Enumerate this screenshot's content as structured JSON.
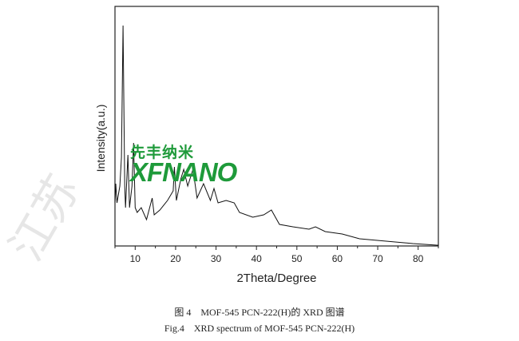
{
  "chart_data": {
    "type": "line",
    "title": "",
    "xlabel": "2Theta/Degree",
    "ylabel": "Intensity(a.u.)",
    "xlim": [
      5,
      85
    ],
    "ylim": [
      0,
      100
    ],
    "xticks": [
      10,
      20,
      30,
      40,
      50,
      60,
      70,
      80
    ],
    "grid": false,
    "series": [
      {
        "name": "MOF-545 PCN-222(H)",
        "color": "#111111",
        "x": [
          5.0,
          5.2,
          5.5,
          6.2,
          6.6,
          7.0,
          7.4,
          7.6,
          8.2,
          8.6,
          9.2,
          9.6,
          10.0,
          10.5,
          11.5,
          12.8,
          14.2,
          14.7,
          16.1,
          18.0,
          19.4,
          19.7,
          20.2,
          21.3,
          22.0,
          23.0,
          24.3,
          25.3,
          26.9,
          28.6,
          29.5,
          30.5,
          32.5,
          34.5,
          35.8,
          39.1,
          41.8,
          43.7,
          45.7,
          49.0,
          53.0,
          54.6,
          57.0,
          61.2,
          65.5,
          72.1,
          78.7,
          85.0
        ],
        "y": [
          18,
          26,
          18,
          25,
          37,
          92,
          25,
          16,
          38,
          16,
          25,
          43,
          16,
          14,
          16,
          11,
          20,
          13,
          15,
          19,
          23,
          33,
          19,
          28,
          32,
          25,
          32,
          20,
          26,
          19,
          24,
          18,
          19,
          18,
          14,
          12,
          13,
          15,
          9,
          8,
          7,
          8,
          6,
          5,
          3,
          2,
          1,
          0.3
        ]
      }
    ]
  },
  "captions": {
    "cn": "图 4　MOF-545 PCN-222(H)的 XRD 图谱",
    "en": "Fig.4　XRD spectrum of MOF-545 PCN-222(H)"
  },
  "watermark": {
    "logo_cn": "先丰纳米",
    "logo_en": "XFNANO",
    "side": "江苏"
  }
}
